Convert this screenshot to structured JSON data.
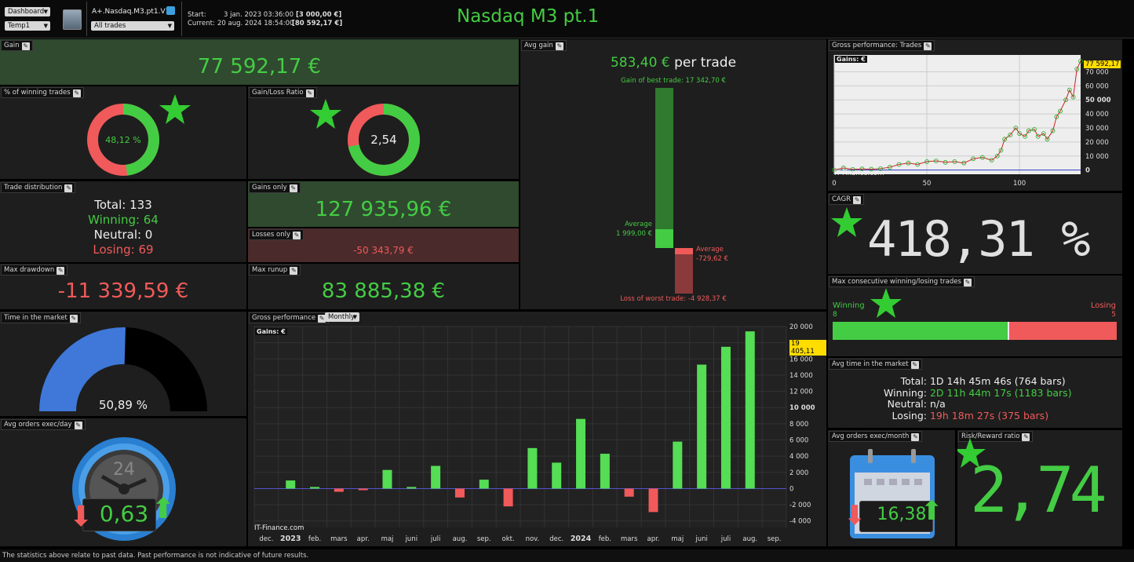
{
  "toolbar": {
    "dashboard_label": "Dashboard",
    "template_label": "Temp1",
    "strategy_name": "A+.Nasdaq.M3.pt1.V1",
    "trades_filter": "All trades",
    "start_label": "Start:",
    "start_date": "3 jan. 2023 03:36:00",
    "start_value": "[3 000,00 €]",
    "current_label": "Current:",
    "current_date": "20 aug. 2024 18:54:00",
    "current_value": "[80 592,17 €]",
    "title": "Nasdaq M3 pt.1"
  },
  "gain": {
    "title": "Gain",
    "value": "77 592,17 €"
  },
  "winning_pct": {
    "title": "% of winning trades",
    "value": "48,12 %",
    "fraction": 0.4812
  },
  "gain_loss_ratio": {
    "title": "Gain/Loss Ratio",
    "value": "2,54",
    "fraction": 0.7175
  },
  "trade_distribution": {
    "title": "Trade distribution",
    "total": "Total: 133",
    "winning": "Winning: 64",
    "neutral": "Neutral: 0",
    "losing": "Losing: 69"
  },
  "gains_only": {
    "title": "Gains only",
    "value": "127 935,96 €"
  },
  "losses_only": {
    "title": "Losses only",
    "value": "-50 343,79 €"
  },
  "max_drawdown": {
    "title": "Max drawdown",
    "value": "-11 339,59 €"
  },
  "max_runup": {
    "title": "Max runup",
    "value": "83 885,38 €"
  },
  "avg_gain": {
    "title": "Avg gain",
    "value": "583,40 €",
    "unit": "per trade",
    "best_label": "Gain of best trade: 17 342,70 €",
    "avg_win_label": "Average",
    "avg_win_value": "1 999,00 €",
    "avg_loss_label": "Average",
    "avg_loss_value": "-729,62 €",
    "worst_label": "Loss of worst trade: -4 928,37 €"
  },
  "gross_trades": {
    "title": "Gross performance: Trades",
    "legend": "Gains: €",
    "current_badge": "77 592,17",
    "watermark": "IT-Finance.com"
  },
  "cagr": {
    "title": "CAGR",
    "value": "418,31 %"
  },
  "max_consecutive": {
    "title": "Max consecutive winning/losing trades",
    "winning_label": "Winning",
    "winning_count": "8",
    "losing_label": "Losing",
    "losing_count": "5",
    "winning_fraction": 0.615
  },
  "avg_time": {
    "title": "Avg time in the market",
    "total_label": "Total:",
    "total_value": "1D 14h 45m 46s (764 bars)",
    "winning_label": "Winning:",
    "winning_value": "2D 11h 44m 17s (1183 bars)",
    "neutral_label": "Neutral:",
    "neutral_value": "n/a",
    "losing_label": "Losing:",
    "losing_value": "19h 18m 27s (375 bars)"
  },
  "time_in_market": {
    "title": "Time in the market",
    "value": "50,89 %",
    "fraction": 0.5089
  },
  "gross_perf": {
    "title": "Gross performance",
    "period": "Monthly",
    "legend": "Gains: €",
    "current_badge": "19 405,11",
    "watermark": "IT-Finance.com"
  },
  "avg_orders_day": {
    "title": "Avg orders exec/day",
    "value": "0,63",
    "clock_label": "24"
  },
  "avg_orders_month": {
    "title": "Avg orders exec/month",
    "value": "16,38"
  },
  "risk_reward": {
    "title": "Risk/Reward ratio",
    "value": "2,74"
  },
  "footer": {
    "disclaimer": "The statistics above relate to past data. Past performance is not indicative of future results."
  },
  "colors": {
    "green": "#44cc44",
    "red": "#f05a5a",
    "blue": "#3f78d8"
  },
  "chart_data": [
    {
      "type": "bar",
      "title": "Gross performance",
      "legend": "Gains: €",
      "categories": [
        "dec.",
        "2023",
        "feb.",
        "mars",
        "apr.",
        "maj",
        "juni",
        "juli",
        "aug.",
        "sep.",
        "okt.",
        "nov.",
        "dec.",
        "2024",
        "feb.",
        "mars",
        "apr.",
        "maj",
        "juni",
        "juli",
        "aug.",
        "sep."
      ],
      "values": [
        null,
        1000,
        200,
        -400,
        -200,
        2300,
        200,
        2800,
        -1100,
        1100,
        -2200,
        5000,
        3200,
        8600,
        4300,
        -1000,
        -2900,
        5800,
        15300,
        17500,
        19405,
        null
      ],
      "ylim": [
        -4800,
        20000
      ],
      "yticks": [
        -4000,
        -2000,
        0,
        2000,
        4000,
        6000,
        8000,
        10000,
        12000,
        14000,
        16000,
        18000,
        20000
      ],
      "ytick_labels": [
        "-4 000",
        "-2 000",
        "0",
        "2 000",
        "4 000",
        "6 000",
        "8 000",
        "10 000",
        "12 000",
        "14 000",
        "16 000",
        "18 000",
        "20 000"
      ],
      "grid": true
    },
    {
      "type": "line",
      "title": "Gross performance: Trades",
      "legend": "Gains: €",
      "x": [
        0,
        5,
        10,
        15,
        20,
        25,
        30,
        35,
        40,
        45,
        50,
        55,
        60,
        65,
        70,
        75,
        80,
        85,
        88,
        90,
        92,
        95,
        98,
        100,
        103,
        105,
        108,
        110,
        113,
        115,
        118,
        120,
        122,
        125,
        127,
        129,
        131,
        133
      ],
      "y": [
        0,
        1500,
        500,
        800,
        600,
        1000,
        2000,
        4000,
        5000,
        4000,
        6000,
        6500,
        5500,
        6000,
        5000,
        8000,
        9000,
        7000,
        10000,
        14000,
        22000,
        25000,
        30000,
        26000,
        24000,
        28000,
        29000,
        24000,
        26000,
        22000,
        28000,
        38000,
        42000,
        50000,
        57000,
        52000,
        72000,
        77592
      ],
      "xticks": [
        0,
        50,
        100
      ],
      "yticks": [
        0,
        10000,
        20000,
        30000,
        40000,
        50000,
        60000,
        70000
      ],
      "ytick_labels": [
        "0",
        "10 000",
        "20 000",
        "30 000",
        "40 000",
        "50 000",
        "60 000",
        "70 000"
      ],
      "xlim": [
        0,
        133
      ],
      "ylim": [
        -3000,
        82000
      ],
      "grid": true
    }
  ]
}
